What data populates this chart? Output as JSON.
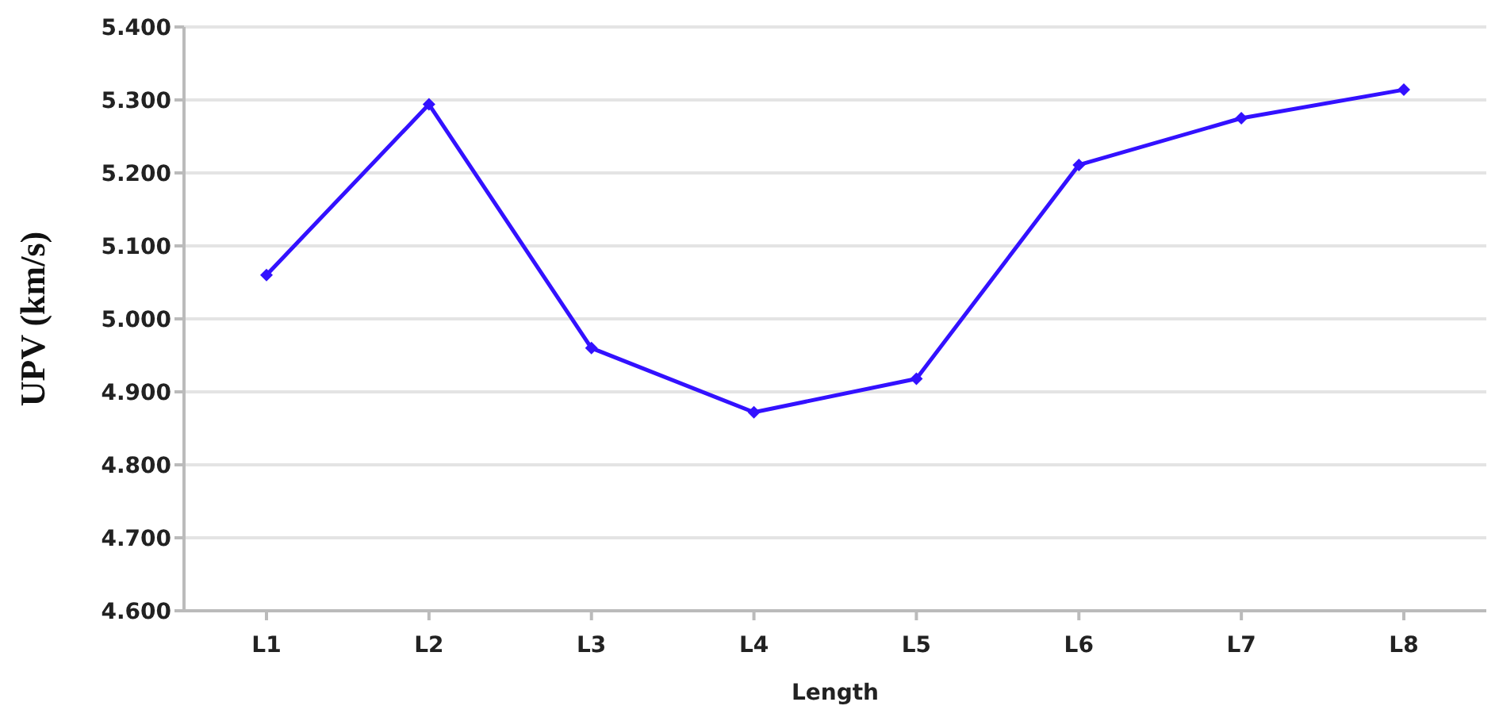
{
  "chart_data": {
    "type": "line",
    "xlabel": "Length",
    "ylabel": "UPV (km/s)",
    "categories": [
      "L1",
      "L2",
      "L3",
      "L4",
      "L5",
      "L6",
      "L7",
      "L8"
    ],
    "series": [
      {
        "color": "#3311ff",
        "values": [
          5.06,
          5.294,
          4.96,
          4.872,
          4.918,
          5.211,
          5.275,
          5.314
        ]
      }
    ],
    "ylim": [
      4.6,
      5.4
    ],
    "yticks": [
      {
        "value": 4.6,
        "label": "4.600"
      },
      {
        "value": 4.7,
        "label": "4.700"
      },
      {
        "value": 4.8,
        "label": "4.800"
      },
      {
        "value": 4.9,
        "label": "4.900"
      },
      {
        "value": 5.0,
        "label": "5.000"
      },
      {
        "value": 5.1,
        "label": "5.100"
      },
      {
        "value": 5.2,
        "label": "5.200"
      },
      {
        "value": 5.3,
        "label": "5.300"
      },
      {
        "value": 5.4,
        "label": "5.400"
      }
    ],
    "grid": "y",
    "marker": "diamond",
    "line_style": "solid",
    "legend": false
  }
}
